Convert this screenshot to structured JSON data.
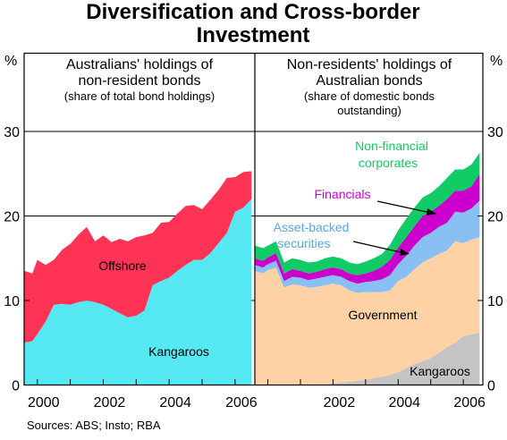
{
  "title_line1": "Diversification and Cross-border",
  "title_line2": "Investment",
  "unit_left": "%",
  "unit_right": "%",
  "source": "Sources: ABS; Insto; RBA",
  "colors": {
    "offshore": "#ff3355",
    "kangaroos_left": "#55e8f2",
    "kangaroos_right": "#c4c4c4",
    "government": "#ffd2a6",
    "asset_backed": "#88c0f4",
    "financials": "#cc00cc",
    "non_financial": "#11cc66"
  },
  "chart_data": [
    {
      "type": "area",
      "stacked": true,
      "title": "Australians' holdings of non-resident bonds",
      "subtitle": "(share of total bond holdings)",
      "ylim": [
        0,
        35
      ],
      "yticks": [
        0,
        10,
        20,
        30
      ],
      "xlim": [
        1999.6,
        2006.6
      ],
      "xticks": [
        2000,
        2002,
        2004,
        2006
      ],
      "grid": true,
      "x": [
        1999.6,
        1999.85,
        2000.0,
        2000.25,
        2000.5,
        2000.75,
        2001.0,
        2001.25,
        2001.5,
        2001.75,
        2002.0,
        2002.25,
        2002.5,
        2002.75,
        2003.0,
        2003.25,
        2003.5,
        2003.75,
        2004.0,
        2004.25,
        2004.5,
        2004.75,
        2005.0,
        2005.25,
        2005.5,
        2005.75,
        2006.0,
        2006.25,
        2006.5
      ],
      "series": [
        {
          "name": "Kangaroos",
          "values": [
            5.0,
            5.2,
            6.0,
            7.5,
            9.5,
            9.6,
            9.5,
            9.8,
            10.0,
            9.8,
            9.5,
            9.0,
            8.5,
            8.0,
            8.2,
            8.8,
            11.8,
            12.3,
            12.7,
            13.5,
            14.2,
            14.8,
            14.8,
            15.6,
            16.8,
            18.0,
            20.5,
            21.0,
            22.0
          ]
        },
        {
          "name": "Offshore",
          "values": [
            8.5,
            8.0,
            8.8,
            6.7,
            5.3,
            6.4,
            7.2,
            8.0,
            8.7,
            7.2,
            8.2,
            7.9,
            8.8,
            9.0,
            9.3,
            8.9,
            6.2,
            6.9,
            6.6,
            6.8,
            7.0,
            6.5,
            6.0,
            6.3,
            6.3,
            6.5,
            4.1,
            4.2,
            3.3
          ]
        }
      ],
      "annotations": [
        {
          "text": "Offshore",
          "series": "Offshore"
        },
        {
          "text": "Kangaroos",
          "series": "Kangaroos"
        }
      ]
    },
    {
      "type": "area",
      "stacked": true,
      "title": "Non-residents' holdings of Australian bonds",
      "subtitle": "(share of domestic bonds outstanding)",
      "ylim": [
        0,
        35
      ],
      "yticks": [
        0,
        10,
        20,
        30
      ],
      "xlim": [
        1999.6,
        2006.6
      ],
      "xticks": [
        2002,
        2004,
        2006
      ],
      "grid": true,
      "x": [
        1999.6,
        1999.85,
        2000.0,
        2000.25,
        2000.5,
        2000.75,
        2001.0,
        2001.25,
        2001.5,
        2001.75,
        2002.0,
        2002.25,
        2002.5,
        2002.75,
        2003.0,
        2003.25,
        2003.5,
        2003.75,
        2004.0,
        2004.25,
        2004.5,
        2004.75,
        2005.0,
        2005.25,
        2005.5,
        2005.75,
        2006.0,
        2006.25,
        2006.5
      ],
      "series": [
        {
          "name": "Kangaroos",
          "values": [
            0.0,
            0.0,
            0.0,
            0.0,
            0.0,
            0.0,
            0.0,
            0.0,
            0.0,
            0.0,
            0.2,
            0.3,
            0.4,
            0.5,
            0.6,
            0.8,
            1.0,
            1.2,
            1.5,
            2.0,
            2.5,
            2.8,
            3.2,
            3.8,
            4.5,
            5.0,
            5.8,
            6.0,
            6.2
          ]
        },
        {
          "name": "Government",
          "values": [
            13.5,
            13.2,
            13.6,
            13.9,
            11.5,
            11.9,
            11.8,
            11.5,
            11.6,
            11.8,
            11.8,
            11.5,
            10.8,
            10.4,
            10.4,
            10.2,
            10.0,
            10.0,
            10.8,
            10.8,
            11.2,
            11.7,
            11.8,
            11.7,
            11.4,
            12.0,
            11.0,
            11.2,
            11.3
          ]
        },
        {
          "name": "Asset-backed securities",
          "values": [
            0.7,
            0.7,
            0.7,
            0.8,
            0.8,
            0.9,
            0.9,
            0.9,
            1.0,
            1.0,
            1.0,
            1.0,
            1.1,
            1.1,
            1.2,
            1.3,
            1.5,
            1.8,
            2.0,
            2.5,
            2.8,
            3.0,
            3.0,
            3.2,
            3.3,
            3.5,
            3.6,
            3.7,
            4.3
          ]
        },
        {
          "name": "Financials",
          "values": [
            0.8,
            0.8,
            0.8,
            0.9,
            0.9,
            0.9,
            0.8,
            0.8,
            0.8,
            0.9,
            0.9,
            0.9,
            0.9,
            1.0,
            1.0,
            1.2,
            1.5,
            1.8,
            2.0,
            2.2,
            2.3,
            2.5,
            2.5,
            2.5,
            2.8,
            2.5,
            2.6,
            2.6,
            3.2
          ]
        },
        {
          "name": "Non-financial corporates",
          "values": [
            1.5,
            1.5,
            1.4,
            1.4,
            1.3,
            1.3,
            1.3,
            1.3,
            1.2,
            1.3,
            1.3,
            1.3,
            1.3,
            1.3,
            1.4,
            1.5,
            1.5,
            1.8,
            2.0,
            2.2,
            2.2,
            2.2,
            2.2,
            2.3,
            2.5,
            2.5,
            2.5,
            2.6,
            2.5
          ]
        }
      ],
      "annotations": [
        {
          "text": "Non-financial corporates",
          "series": "Non-financial corporates"
        },
        {
          "text": "Financials",
          "series": "Financials"
        },
        {
          "text": "Asset-backed securities",
          "series": "Asset-backed securities"
        },
        {
          "text": "Government",
          "series": "Government"
        },
        {
          "text": "Kangaroos",
          "series": "Kangaroos"
        }
      ]
    }
  ]
}
